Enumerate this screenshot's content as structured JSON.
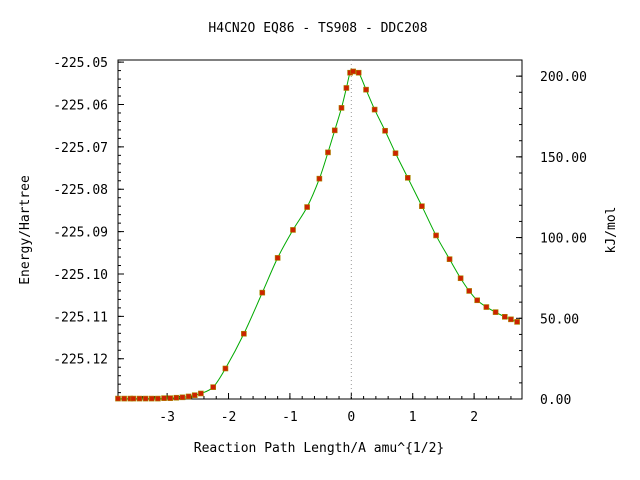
{
  "chart_data": {
    "type": "line",
    "title": "H4CN2O   EQ86 - TS908 - DDC208",
    "xlabel": "Reaction Path Length/A amu^{1/2}",
    "ylabel": "Energy/Hartree",
    "y2label": "kJ/mol",
    "xlim": [
      -3.8,
      2.78
    ],
    "ylim": [
      -225.1295,
      -225.0495
    ],
    "y2lim": [
      0,
      210
    ],
    "x_ticks": [
      -3,
      -2,
      -1,
      0,
      1,
      2
    ],
    "y_ticks": [
      -225.05,
      -225.06,
      -225.07,
      -225.08,
      -225.09,
      -225.1,
      -225.11,
      -225.12
    ],
    "y_tick_labels": [
      "-225.05",
      "-225.06",
      "-225.07",
      "-225.08",
      "-225.09",
      "-225.10",
      "-225.11",
      "-225.12"
    ],
    "y2_ticks": [
      0,
      50,
      100,
      150,
      200
    ],
    "y2_tick_labels": [
      "0.00",
      "50.00",
      "100.00",
      "150.00",
      "200.00"
    ],
    "ts_marker_x": 0.0,
    "colors": {
      "line": "#00aa00",
      "marker": "#cc2200",
      "ts_line": "#999999",
      "axes": "#000000"
    },
    "series": [
      {
        "x": [
          -3.8,
          -3.7,
          -3.6,
          -3.55,
          -3.45,
          -3.35,
          -3.25,
          -3.15,
          -3.05,
          -2.95,
          -2.85,
          -2.75,
          -2.65,
          -2.55,
          -2.45,
          -2.25,
          -2.05,
          -1.75,
          -1.45,
          -1.2,
          -0.95,
          -0.72,
          -0.52,
          -0.38,
          -0.27,
          -0.16,
          -0.08,
          -0.02,
          0.03,
          0.12,
          0.24,
          0.38,
          0.55,
          0.72,
          0.92,
          1.15,
          1.38,
          1.6,
          1.78,
          1.92,
          2.05,
          2.2,
          2.35,
          2.5,
          2.6,
          2.7
        ],
        "y": [
          -225.1294,
          -225.1294,
          -225.1294,
          -225.1294,
          -225.1294,
          -225.1294,
          -225.1294,
          -225.1294,
          -225.1293,
          -225.1293,
          -225.1292,
          -225.1291,
          -225.1289,
          -225.1286,
          -225.1282,
          -225.1267,
          -225.1223,
          -225.1141,
          -225.1044,
          -225.0962,
          -225.0896,
          -225.0842,
          -225.0775,
          -225.0713,
          -225.0661,
          -225.0608,
          -225.0561,
          -225.0525,
          -225.0522,
          -225.0525,
          -225.0565,
          -225.0612,
          -225.0662,
          -225.0715,
          -225.0773,
          -225.084,
          -225.0909,
          -225.0965,
          -225.101,
          -225.104,
          -225.1062,
          -225.1078,
          -225.109,
          -225.1101,
          -225.1107,
          -225.1113
        ]
      }
    ]
  }
}
